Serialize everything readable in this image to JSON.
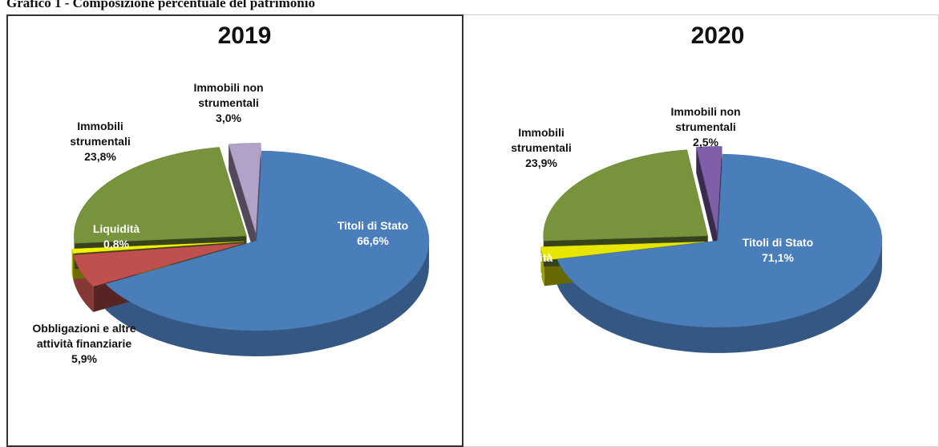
{
  "header": {
    "title": "Grafico 1 - Composizione percentuale del patrimonio"
  },
  "chart_data": [
    {
      "type": "pie",
      "title": "2019",
      "categories": [
        "Titoli di Stato",
        "Obbligazioni e altre attività finanziarie",
        "Liquidità",
        "Immobili strumentali",
        "Immobili non strumentali"
      ],
      "values": [
        66.6,
        5.9,
        0.8,
        23.8,
        3.0
      ],
      "value_labels": [
        "66,6%",
        "5,9%",
        "0,8%",
        "23,8%",
        "3,0%"
      ],
      "colors": [
        "#4a7ebb",
        "#c0504d",
        "#f2f200",
        "#77933c",
        "#b3a2c7"
      ]
    },
    {
      "type": "pie",
      "title": "2020",
      "categories": [
        "Titoli di Stato",
        "Liquidità",
        "Immobili strumentali",
        "Immobili non strumentali"
      ],
      "values": [
        71.1,
        2.5,
        23.9,
        2.5
      ],
      "value_labels": [
        "71,1%",
        "2,5%",
        "23,9%",
        "2,5%"
      ],
      "colors": [
        "#4a7ebb",
        "#e6e600",
        "#77933c",
        "#7f5fa8"
      ]
    }
  ]
}
